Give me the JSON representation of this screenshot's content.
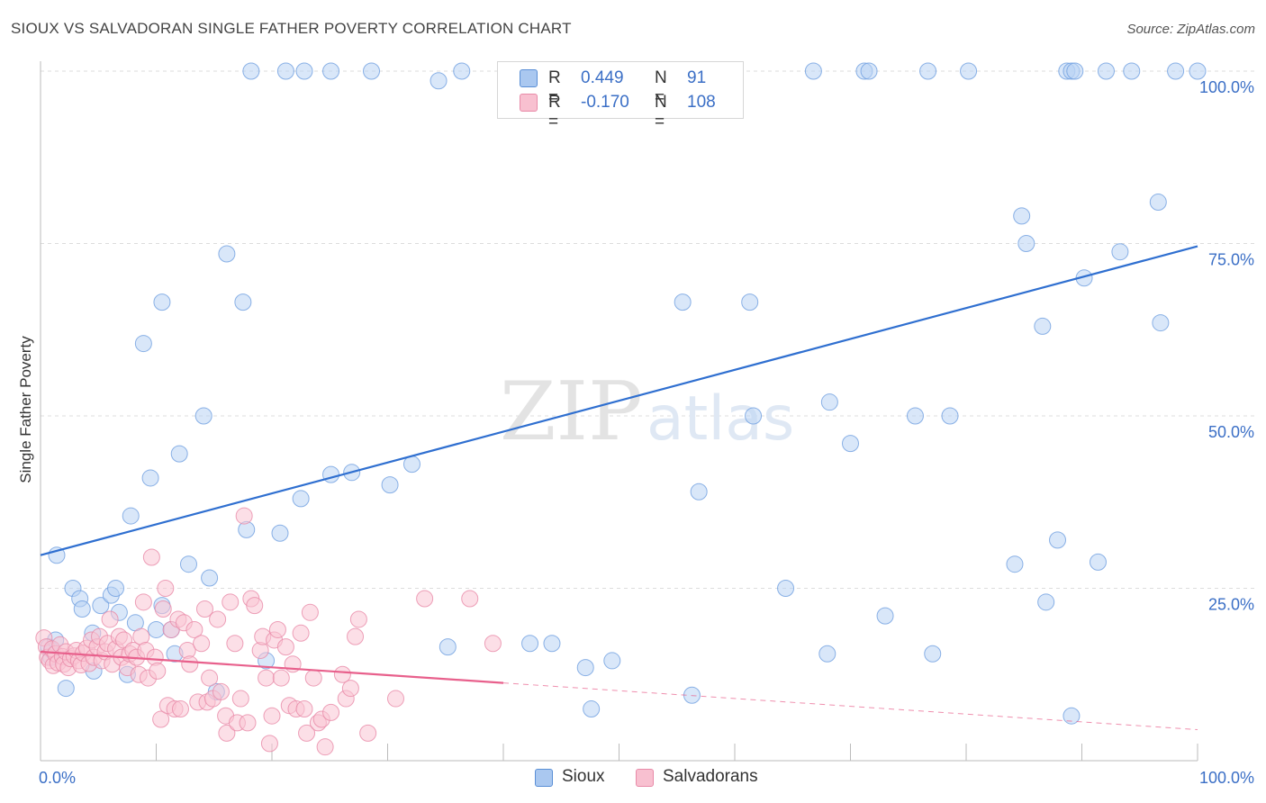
{
  "title": "SIOUX VS SALVADORAN SINGLE FATHER POVERTY CORRELATION CHART",
  "source": "Source: ZipAtlas.com",
  "watermark": {
    "zip": "ZIP",
    "atlas": "atlas"
  },
  "legend": {
    "rows": [
      {
        "r_label": "R =",
        "r_value": "0.449",
        "n_label": "N =",
        "n_value": "91",
        "color": "#aac8f0",
        "border": "#5a8fd6"
      },
      {
        "r_label": "R =",
        "r_value": "-0.170",
        "n_label": "N =",
        "n_value": "108",
        "color": "#f8c0d0",
        "border": "#e88aa8"
      }
    ]
  },
  "bottom_legend": [
    {
      "label": "Sioux",
      "color": "#aac8f0",
      "border": "#5a8fd6"
    },
    {
      "label": "Salvadorans",
      "color": "#f8c0d0",
      "border": "#e88aa8"
    }
  ],
  "chart_data": {
    "type": "scatter",
    "title": "SIOUX VS SALVADORAN SINGLE FATHER POVERTY CORRELATION CHART",
    "xlabel": "",
    "ylabel": "Single Father Poverty",
    "xlim": [
      0,
      100
    ],
    "ylim": [
      0,
      100
    ],
    "x_tick_labels": [
      "0.0%",
      "100.0%"
    ],
    "y_tick_labels": [
      "25.0%",
      "50.0%",
      "75.0%",
      "100.0%"
    ],
    "y_ticks": [
      25,
      50,
      75,
      100
    ],
    "grid": true,
    "series": [
      {
        "name": "Sioux",
        "color": "#6f9fe0",
        "fill": "#b9d3f4",
        "trend": {
          "x": [
            0,
            100
          ],
          "y": [
            29.8,
            74.6
          ],
          "solid_to": 100
        },
        "points": [
          [
            18.2,
            100
          ],
          [
            21.2,
            100
          ],
          [
            22.8,
            100
          ],
          [
            25.1,
            100
          ],
          [
            28.6,
            100
          ],
          [
            34.4,
            98.6
          ],
          [
            36.4,
            100
          ],
          [
            66.8,
            100
          ],
          [
            71.2,
            100
          ],
          [
            71.6,
            100
          ],
          [
            76.7,
            100
          ],
          [
            80.2,
            100
          ],
          [
            88.7,
            100
          ],
          [
            89.1,
            100
          ],
          [
            89.4,
            100
          ],
          [
            92.1,
            100
          ],
          [
            94.3,
            100
          ],
          [
            98.1,
            100
          ],
          [
            100,
            100
          ],
          [
            0.7,
            16.5
          ],
          [
            0.9,
            15.0
          ],
          [
            1.0,
            16.0
          ],
          [
            1.3,
            17.5
          ],
          [
            1.4,
            29.8
          ],
          [
            2.2,
            10.5
          ],
          [
            2.8,
            25.0
          ],
          [
            3.4,
            23.5
          ],
          [
            3.6,
            22.0
          ],
          [
            4.5,
            18.5
          ],
          [
            4.6,
            13.0
          ],
          [
            5.2,
            22.5
          ],
          [
            6.1,
            24.0
          ],
          [
            6.5,
            25.0
          ],
          [
            6.8,
            21.5
          ],
          [
            7.5,
            12.5
          ],
          [
            7.8,
            35.5
          ],
          [
            8.2,
            20.0
          ],
          [
            8.9,
            60.5
          ],
          [
            9.5,
            41.0
          ],
          [
            10.0,
            19.0
          ],
          [
            10.5,
            66.5
          ],
          [
            10.5,
            22.5
          ],
          [
            11.3,
            19.0
          ],
          [
            11.6,
            15.5
          ],
          [
            12.0,
            44.5
          ],
          [
            12.8,
            28.5
          ],
          [
            14.1,
            50.0
          ],
          [
            14.6,
            26.5
          ],
          [
            15.2,
            10.0
          ],
          [
            16.1,
            73.5
          ],
          [
            17.5,
            66.5
          ],
          [
            17.8,
            33.5
          ],
          [
            19.5,
            14.5
          ],
          [
            20.7,
            33.0
          ],
          [
            22.5,
            38.0
          ],
          [
            25.1,
            41.5
          ],
          [
            26.9,
            41.8
          ],
          [
            30.2,
            40.0
          ],
          [
            32.1,
            43.0
          ],
          [
            35.2,
            16.5
          ],
          [
            42.3,
            17.0
          ],
          [
            44.2,
            17.0
          ],
          [
            47.1,
            13.5
          ],
          [
            47.6,
            7.5
          ],
          [
            49.4,
            14.5
          ],
          [
            55.5,
            66.5
          ],
          [
            56.3,
            9.5
          ],
          [
            56.9,
            39.0
          ],
          [
            61.3,
            66.5
          ],
          [
            61.6,
            50.0
          ],
          [
            64.4,
            25.0
          ],
          [
            68.0,
            15.5
          ],
          [
            68.2,
            52.0
          ],
          [
            70.0,
            46.0
          ],
          [
            73.0,
            21.0
          ],
          [
            75.6,
            50.0
          ],
          [
            77.1,
            15.5
          ],
          [
            78.6,
            50.0
          ],
          [
            84.2,
            28.5
          ],
          [
            84.8,
            79.0
          ],
          [
            85.2,
            75.0
          ],
          [
            86.6,
            63.0
          ],
          [
            86.9,
            23.0
          ],
          [
            87.9,
            32.0
          ],
          [
            89.1,
            6.5
          ],
          [
            90.2,
            70.0
          ],
          [
            91.4,
            28.8
          ],
          [
            93.3,
            73.8
          ],
          [
            96.6,
            81.0
          ],
          [
            96.8,
            63.5
          ]
        ]
      },
      {
        "name": "Salvadorans",
        "color": "#e88aa8",
        "fill": "#f9c4d3",
        "trend": {
          "x": [
            0,
            100
          ],
          "y": [
            15.8,
            4.5
          ],
          "solid_to": 40
        },
        "points": [
          [
            0.3,
            17.8
          ],
          [
            0.5,
            16.5
          ],
          [
            0.6,
            15.0
          ],
          [
            0.8,
            14.5
          ],
          [
            1.0,
            16.2
          ],
          [
            1.1,
            13.8
          ],
          [
            1.3,
            15.5
          ],
          [
            1.5,
            14.2
          ],
          [
            1.7,
            16.8
          ],
          [
            1.9,
            15.1
          ],
          [
            2.0,
            14.0
          ],
          [
            2.2,
            15.8
          ],
          [
            2.4,
            13.5
          ],
          [
            2.6,
            14.8
          ],
          [
            2.9,
            15.2
          ],
          [
            3.1,
            16.0
          ],
          [
            3.3,
            14.5
          ],
          [
            3.5,
            13.9
          ],
          [
            3.7,
            15.6
          ],
          [
            4.0,
            16.3
          ],
          [
            4.2,
            14.1
          ],
          [
            4.4,
            17.5
          ],
          [
            4.6,
            15.0
          ],
          [
            4.9,
            16.5
          ],
          [
            5.1,
            18.0
          ],
          [
            5.3,
            14.5
          ],
          [
            5.6,
            15.8
          ],
          [
            5.8,
            17.0
          ],
          [
            6.0,
            20.5
          ],
          [
            6.2,
            14.0
          ],
          [
            6.5,
            16.2
          ],
          [
            6.8,
            18.0
          ],
          [
            7.0,
            15.0
          ],
          [
            7.2,
            17.5
          ],
          [
            7.5,
            13.5
          ],
          [
            7.7,
            15.5
          ],
          [
            8.0,
            16.0
          ],
          [
            8.3,
            15.0
          ],
          [
            8.5,
            12.5
          ],
          [
            8.7,
            18.0
          ],
          [
            8.9,
            23.0
          ],
          [
            9.1,
            16.0
          ],
          [
            9.3,
            12.0
          ],
          [
            9.6,
            29.5
          ],
          [
            9.9,
            15.0
          ],
          [
            10.1,
            13.0
          ],
          [
            10.4,
            6.0
          ],
          [
            10.6,
            22.0
          ],
          [
            10.8,
            25.0
          ],
          [
            11.0,
            8.0
          ],
          [
            11.3,
            19.0
          ],
          [
            11.6,
            7.5
          ],
          [
            11.9,
            20.5
          ],
          [
            12.1,
            7.5
          ],
          [
            12.4,
            20.0
          ],
          [
            12.7,
            16.0
          ],
          [
            12.9,
            14.0
          ],
          [
            13.3,
            19.0
          ],
          [
            13.6,
            8.5
          ],
          [
            13.9,
            17.0
          ],
          [
            14.2,
            22.0
          ],
          [
            14.4,
            8.5
          ],
          [
            14.6,
            12.0
          ],
          [
            14.9,
            9.0
          ],
          [
            15.3,
            20.5
          ],
          [
            15.6,
            10.0
          ],
          [
            16.0,
            6.5
          ],
          [
            16.1,
            4.0
          ],
          [
            16.4,
            23.0
          ],
          [
            16.8,
            17.0
          ],
          [
            17.0,
            5.5
          ],
          [
            17.3,
            9.0
          ],
          [
            17.6,
            35.5
          ],
          [
            17.9,
            5.5
          ],
          [
            18.2,
            23.5
          ],
          [
            18.5,
            22.5
          ],
          [
            19.0,
            16.0
          ],
          [
            19.2,
            18.0
          ],
          [
            19.5,
            12.0
          ],
          [
            19.8,
            2.5
          ],
          [
            20.0,
            6.5
          ],
          [
            20.2,
            17.5
          ],
          [
            20.5,
            19.0
          ],
          [
            20.8,
            12.0
          ],
          [
            21.2,
            16.5
          ],
          [
            21.5,
            8.0
          ],
          [
            21.8,
            14.0
          ],
          [
            22.1,
            7.5
          ],
          [
            22.5,
            18.5
          ],
          [
            22.8,
            7.5
          ],
          [
            23.0,
            4.0
          ],
          [
            23.3,
            21.5
          ],
          [
            23.6,
            12.0
          ],
          [
            24.0,
            5.5
          ],
          [
            24.3,
            6.0
          ],
          [
            24.6,
            2.0
          ],
          [
            25.1,
            7.0
          ],
          [
            26.1,
            12.5
          ],
          [
            26.4,
            9.0
          ],
          [
            26.8,
            10.5
          ],
          [
            27.2,
            18.0
          ],
          [
            27.5,
            20.5
          ],
          [
            28.3,
            4.0
          ],
          [
            30.7,
            9.0
          ],
          [
            33.2,
            23.5
          ],
          [
            37.1,
            23.5
          ],
          [
            39.1,
            17.0
          ]
        ]
      }
    ]
  }
}
